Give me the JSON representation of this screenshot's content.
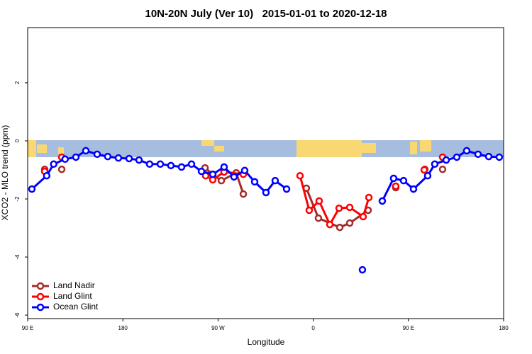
{
  "chart_data": {
    "type": "line",
    "title": "10N-20N July (Ver 10)   2015-01-01 to 2020-12-18",
    "x_label": "Longitude",
    "y_label": "XCO2 - MLO trend (ppm)",
    "xlim": [
      90,
      540
    ],
    "xticks": [
      {
        "value": 90,
        "label": "90 E"
      },
      180,
      {
        "value": 270,
        "label": "90 W"
      },
      {
        "value": 360,
        "label": "0"
      },
      {
        "value": 450,
        "label": "90 E"
      },
      {
        "value": 540,
        "label": "180"
      }
    ],
    "ylim": [
      -6.12,
      3.9
    ],
    "yticks": [
      -6,
      -4,
      -2,
      0,
      2
    ],
    "legend": "bottom-left",
    "series": [
      {
        "name": "Land Nadir",
        "color": "#a52a2a",
        "x": [
          106.1,
          null,
          122.2,
          null,
          257.7,
          265,
          273.1,
          287.2,
          293.9,
          null,
          353.5,
          364.9,
          385.1,
          394.5,
          411.9,
          null,
          438,
          null,
          465.5,
          null,
          482.3
        ],
        "values": [
          -0.98,
          null,
          -0.98,
          null,
          -0.93,
          -1.15,
          -1.37,
          -1.1,
          -1.83,
          null,
          -1.63,
          -2.66,
          -2.98,
          -2.83,
          -2.39,
          null,
          -1.61,
          null,
          -0.98,
          null,
          -0.98
        ]
      },
      {
        "name": "Land Glint",
        "color": "#ff0000",
        "x": [
          106.1,
          null,
          122.2,
          null,
          258.3,
          265,
          275.7,
          293.9,
          null,
          347.5,
          356.2,
          365.6,
          375.7,
          384.4,
          394.5,
          407.2,
          412.6,
          null,
          438,
          null,
          464.9,
          null,
          482.3
        ],
        "values": [
          -1.05,
          null,
          -0.56,
          null,
          -1.2,
          -1.34,
          -1.07,
          -1.15,
          null,
          -1.2,
          -2.39,
          -2.07,
          -2.88,
          -2.32,
          -2.29,
          -2.61,
          -1.95,
          null,
          -1.56,
          null,
          -1,
          null,
          -0.56
        ]
      },
      {
        "name": "Ocean Glint",
        "color": "#0000ff",
        "x": [
          94,
          108,
          114.6,
          125.4,
          135.6,
          145,
          155.7,
          165.7,
          175.8,
          185.9,
          195.3,
          205.3,
          215.4,
          225.4,
          235.5,
          244.9,
          254.3,
          265,
          275.7,
          285.1,
          295.2,
          304.6,
          315.3,
          324,
          334.8,
          null,
          406.5,
          null,
          425.3,
          436,
          445.4,
          454.8,
          468.2,
          474.9,
          485.7,
          495.7,
          505.1,
          515.8,
          525.9,
          535.9
        ],
        "values": [
          -1.66,
          -1.2,
          -0.8,
          -0.63,
          -0.56,
          -0.34,
          -0.46,
          -0.54,
          -0.59,
          -0.61,
          -0.66,
          -0.8,
          -0.8,
          -0.85,
          -0.9,
          -0.8,
          -1.05,
          -1.15,
          -0.9,
          -1.24,
          -1.02,
          -1.41,
          -1.78,
          -1.37,
          -1.66,
          null,
          -4.44,
          null,
          -2.07,
          -1.29,
          -1.37,
          -1.66,
          -1.2,
          -0.8,
          -0.66,
          -0.56,
          -0.34,
          -0.46,
          -0.54,
          -0.56
        ]
      }
    ]
  }
}
